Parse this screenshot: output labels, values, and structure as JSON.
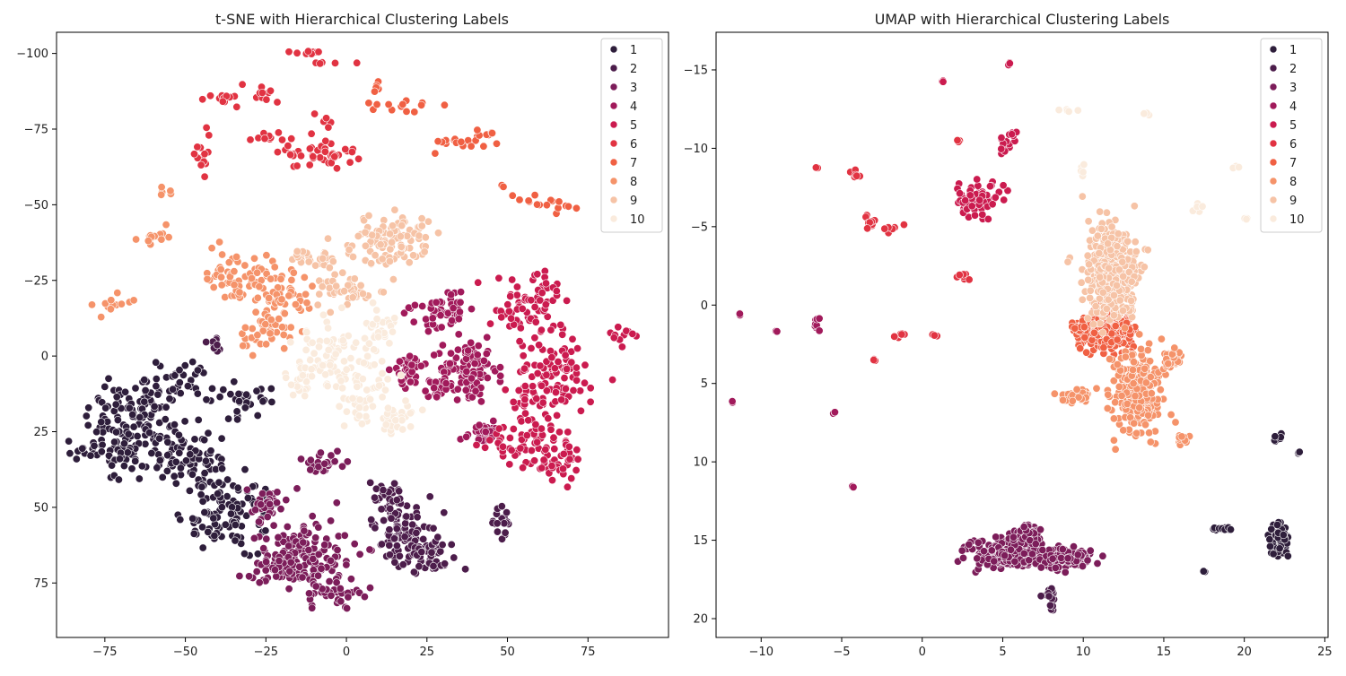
{
  "chart_data": [
    {
      "type": "scatter",
      "title": "t-SNE with Hierarchical Clustering Labels",
      "xlabel": "",
      "ylabel": "",
      "xlim": [
        -90,
        100
      ],
      "ylim": [
        93,
        -107
      ],
      "y_inverted": true,
      "xticks": [
        -75,
        -50,
        -25,
        0,
        25,
        50,
        75
      ],
      "yticks": [
        -100,
        -75,
        -50,
        -25,
        0,
        25,
        50,
        75
      ],
      "legend": "top-right",
      "legend_labels": [
        "1",
        "2",
        "3",
        "4",
        "5",
        "6",
        "7",
        "8",
        "9",
        "10"
      ],
      "palette": [
        "#03051a",
        "#2e1e3b",
        "#4c1d4b",
        "#7c1d5a",
        "#a11a5b",
        "#cb1b4f",
        "#e13342",
        "#f06043",
        "#f5936a",
        "#f6c3a6",
        "#faebdd"
      ],
      "clusters": [
        {
          "label": "1",
          "point_count": 400,
          "blobs": [
            [
              -65,
              20,
              15,
              13
            ],
            [
              -48,
              35,
              12,
              10
            ],
            [
              -35,
              50,
              10,
              12
            ],
            [
              -72,
              32,
              10,
              8
            ],
            [
              -30,
              15,
              8,
              6
            ],
            [
              -52,
              8,
              8,
              6
            ],
            [
              -44,
              55,
              8,
              6
            ]
          ]
        },
        {
          "label": "2",
          "point_count": 200,
          "blobs": [
            [
              18,
              58,
              8,
              10
            ],
            [
              27,
              66,
              6,
              6
            ],
            [
              12,
              46,
              4,
              4
            ],
            [
              48,
              55,
              3,
              5
            ],
            [
              -42,
              -5,
              2,
              2
            ],
            [
              -40,
              -2,
              2,
              2
            ]
          ]
        },
        {
          "label": "3",
          "point_count": 260,
          "blobs": [
            [
              -12,
              65,
              12,
              10
            ],
            [
              -25,
              50,
              6,
              5
            ],
            [
              -5,
              78,
              10,
              4
            ],
            [
              -7,
              35,
              6,
              4
            ],
            [
              -22,
              70,
              8,
              5
            ]
          ]
        },
        {
          "label": "4",
          "point_count": 240,
          "blobs": [
            [
              38,
              5,
              8,
              10
            ],
            [
              30,
              -15,
              7,
              6
            ],
            [
              42,
              25,
              6,
              4
            ],
            [
              20,
              5,
              5,
              5
            ],
            [
              28,
              10,
              4,
              4
            ]
          ]
        },
        {
          "label": "5",
          "point_count": 300,
          "blobs": [
            [
              58,
              30,
              12,
              8
            ],
            [
              65,
              5,
              10,
              12
            ],
            [
              55,
              -15,
              8,
              8
            ],
            [
              62,
              -22,
              6,
              5
            ],
            [
              85,
              -7,
              5,
              3
            ],
            [
              58,
              15,
              8,
              6
            ],
            [
              68,
              35,
              6,
              6
            ]
          ]
        },
        {
          "label": "6",
          "point_count": 110,
          "blobs": [
            [
              -8,
              -67,
              12,
              5
            ],
            [
              -25,
              -86,
              4,
              3
            ],
            [
              -15,
              -100,
              10,
              1
            ],
            [
              -5,
              -97,
              6,
              1
            ],
            [
              -38,
              -85,
              5,
              3
            ],
            [
              -45,
              -68,
              3,
              6
            ],
            [
              -25,
              -72,
              4,
              3
            ],
            [
              -5,
              -78,
              3,
              2
            ]
          ]
        },
        {
          "label": "7",
          "point_count": 60,
          "blobs": [
            [
              20,
              -82,
              12,
              2
            ],
            [
              34,
              -70,
              8,
              4
            ],
            [
              62,
              -51,
              10,
              3
            ],
            [
              50,
              -55,
              3,
              2
            ],
            [
              10,
              -90,
              3,
              3
            ],
            [
              44,
              -74,
              4,
              3
            ]
          ]
        },
        {
          "label": "8",
          "point_count": 180,
          "blobs": [
            [
              -33,
              -26,
              10,
              8
            ],
            [
              -25,
              -8,
              8,
              6
            ],
            [
              -20,
              -20,
              8,
              8
            ],
            [
              -73,
              -17,
              5,
              3
            ],
            [
              -60,
              -38,
              5,
              4
            ],
            [
              -55,
              -55,
              3,
              2
            ]
          ]
        },
        {
          "label": "9",
          "point_count": 180,
          "blobs": [
            [
              14,
              -38,
              12,
              8
            ],
            [
              -10,
              -33,
              6,
              4
            ],
            [
              0,
              -22,
              8,
              5
            ]
          ]
        },
        {
          "label": "10",
          "point_count": 200,
          "blobs": [
            [
              -2,
              0,
              12,
              10
            ],
            [
              5,
              15,
              8,
              8
            ],
            [
              15,
              20,
              8,
              6
            ],
            [
              -15,
              8,
              6,
              6
            ],
            [
              10,
              -10,
              6,
              6
            ]
          ]
        }
      ]
    },
    {
      "type": "scatter",
      "title": "UMAP with Hierarchical Clustering Labels",
      "xlabel": "",
      "ylabel": "",
      "xlim": [
        -12.8,
        25.2
      ],
      "ylim": [
        21.2,
        -17.4
      ],
      "y_inverted": true,
      "xticks": [
        -10,
        -5,
        0,
        5,
        10,
        15,
        20,
        25
      ],
      "yticks": [
        -15,
        -10,
        -5,
        0,
        5,
        10,
        15,
        20
      ],
      "legend": "top-right",
      "legend_labels": [
        "1",
        "2",
        "3",
        "4",
        "5",
        "6",
        "7",
        "8",
        "9",
        "10"
      ],
      "palette": [
        "#03051a",
        "#2e1e3b",
        "#4c1d4b",
        "#7c1d5a",
        "#a11a5b",
        "#cb1b4f",
        "#e13342",
        "#f06043",
        "#f5936a",
        "#f6c3a6",
        "#faebdd"
      ],
      "clusters": [
        {
          "label": "1",
          "point_count": 90,
          "blobs": [
            [
              22.2,
              15,
              0.5,
              1.0
            ],
            [
              18.6,
              14.3,
              1.0,
              0.1
            ],
            [
              22.2,
              8.5,
              0.3,
              0.2
            ],
            [
              23.4,
              9.4,
              0.1,
              0.1
            ],
            [
              17.5,
              17,
              0.1,
              0.1
            ]
          ]
        },
        {
          "label": "2",
          "point_count": 20,
          "blobs": [
            [
              8,
              18.5,
              0.4,
              0.4
            ],
            [
              8,
              19.3,
              0.2,
              0.2
            ]
          ]
        },
        {
          "label": "3",
          "point_count": 500,
          "blobs": [
            [
              5.3,
              15.8,
              1.8,
              0.8
            ],
            [
              8.8,
              16.2,
              1.5,
              0.6
            ],
            [
              6.5,
              14.5,
              0.8,
              0.5
            ]
          ]
        },
        {
          "label": "4",
          "point_count": 15,
          "blobs": [
            [
              -6.5,
              1.3,
              0.2,
              0.5
            ],
            [
              -9.1,
              1.6,
              0.1,
              0.1
            ],
            [
              -11.3,
              0.6,
              0.1,
              0.1
            ],
            [
              -11.8,
              6.2,
              0.1,
              0.1
            ],
            [
              -5.5,
              6.8,
              0.2,
              0.2
            ],
            [
              -4.3,
              11.6,
              0.1,
              0.1
            ]
          ]
        },
        {
          "label": "5",
          "point_count": 100,
          "blobs": [
            [
              3.5,
              -6.7,
              1.2,
              0.9
            ],
            [
              5.1,
              -10.1,
              0.3,
              0.5
            ],
            [
              5.7,
              -10.9,
              0.3,
              0.3
            ],
            [
              1.3,
              -14.3,
              0.1,
              0.1
            ],
            [
              5.5,
              -15.3,
              0.2,
              0.2
            ]
          ]
        },
        {
          "label": "6",
          "point_count": 40,
          "blobs": [
            [
              -4.2,
              -8.5,
              0.3,
              0.3
            ],
            [
              -3.2,
              -5.2,
              0.3,
              0.5
            ],
            [
              -1.7,
              -4.9,
              0.5,
              0.2
            ],
            [
              2.5,
              -1.8,
              0.5,
              0.2
            ],
            [
              -1.3,
              1.9,
              0.4,
              0.3
            ],
            [
              -3,
              3.5,
              0.1,
              0.1
            ],
            [
              0.7,
              1.9,
              0.1,
              0.1
            ],
            [
              -6.5,
              -8.8,
              0.1,
              0.1
            ],
            [
              2.3,
              -10.5,
              0.1,
              0.1
            ]
          ]
        },
        {
          "label": "7",
          "point_count": 300,
          "blobs": [
            [
              11.5,
              1.8,
              1.4,
              1.0
            ],
            [
              9.8,
              1.5,
              0.5,
              0.5
            ]
          ]
        },
        {
          "label": "8",
          "point_count": 400,
          "blobs": [
            [
              13.3,
              5.5,
              1.3,
              2.2
            ],
            [
              15.5,
              3.5,
              0.6,
              0.6
            ],
            [
              9.5,
              5.8,
              0.8,
              0.4
            ],
            [
              16.2,
              8.5,
              0.3,
              0.4
            ]
          ]
        },
        {
          "label": "9",
          "point_count": 400,
          "blobs": [
            [
              11.8,
              -2.2,
              1.4,
              2.5
            ]
          ]
        },
        {
          "label": "10",
          "point_count": 20,
          "blobs": [
            [
              9.5,
              -12.4,
              0.8,
              0.1
            ],
            [
              13.8,
              -12.2,
              0.2,
              0.2
            ],
            [
              17,
              -6.2,
              0.4,
              0.2
            ],
            [
              19.3,
              -8.8,
              0.3,
              0.2
            ],
            [
              10,
              -8.5,
              0.2,
              0.4
            ],
            [
              20.1,
              -5.5,
              0.1,
              0.1
            ]
          ]
        }
      ]
    }
  ]
}
